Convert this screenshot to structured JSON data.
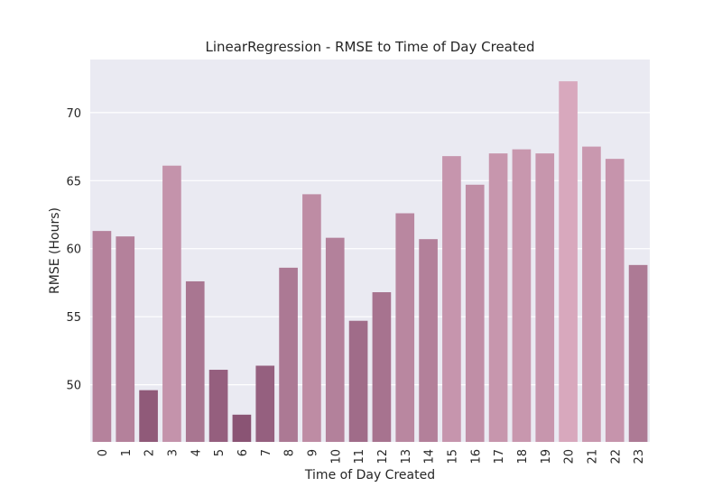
{
  "chart_data": {
    "type": "bar",
    "title": "LinearRegression - RMSE to Time of Day Created",
    "xlabel": "Time of Day Created",
    "ylabel": "RMSE (Hours)",
    "categories": [
      "0",
      "1",
      "2",
      "3",
      "4",
      "5",
      "6",
      "7",
      "8",
      "9",
      "10",
      "11",
      "12",
      "13",
      "14",
      "15",
      "16",
      "17",
      "18",
      "19",
      "20",
      "21",
      "22",
      "23"
    ],
    "values": [
      61.3,
      60.9,
      49.6,
      66.1,
      57.6,
      51.1,
      47.8,
      51.4,
      58.6,
      64.0,
      60.8,
      54.7,
      56.8,
      62.6,
      60.7,
      66.8,
      64.7,
      67.0,
      67.3,
      67.0,
      72.3,
      67.5,
      66.6,
      58.8
    ],
    "ylim": [
      45.8,
      73.9
    ],
    "yticks": [
      50,
      55,
      60,
      65,
      70
    ],
    "grid": true,
    "colors": {
      "background": "#eaeaf2",
      "grid": "#ffffff",
      "bar_low": "#8a5474",
      "bar_high": "#d8a8bd"
    }
  }
}
